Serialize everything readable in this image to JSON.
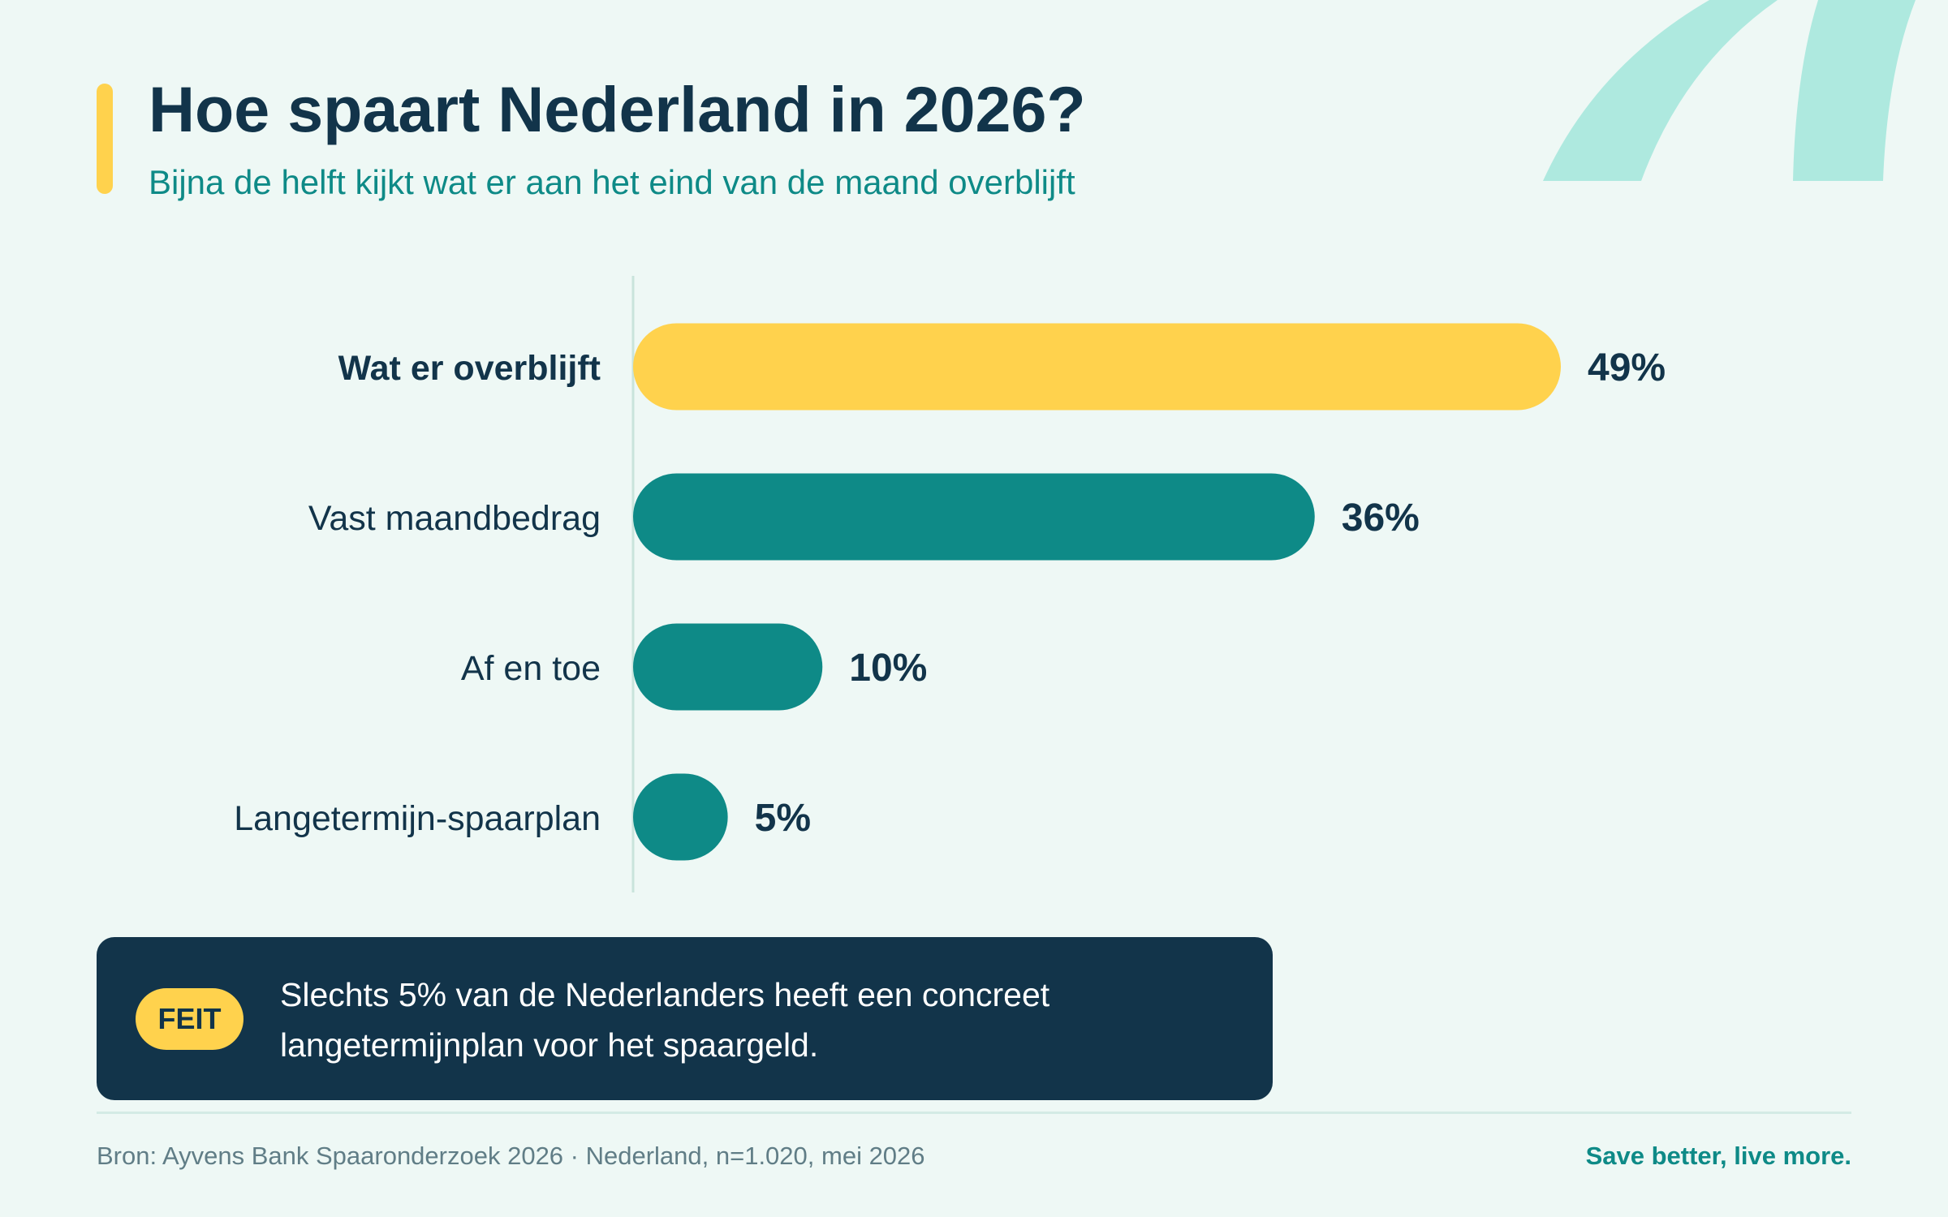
{
  "header": {
    "title": "Hoe spaart Nederland in 2026?",
    "subtitle": "Bijna de helft kijkt wat er aan het eind van de maand overblijft"
  },
  "colors": {
    "highlight": "#ffd24d",
    "primary": "#0e8a87",
    "navy": "#12344a",
    "background": "#eef8f5",
    "decoration": "#aee9df"
  },
  "chart_data": {
    "type": "bar",
    "orientation": "horizontal",
    "categories": [
      "Wat er overblijft",
      "Vast maandbedrag",
      "Af en toe",
      "Langetermijn-spaarplan"
    ],
    "values": [
      49,
      36,
      10,
      5
    ],
    "value_labels": [
      "49%",
      "36%",
      "10%",
      "5%"
    ],
    "unit": "%",
    "highlight_index": 0,
    "xlim": [
      0,
      49
    ],
    "grid": false,
    "title": "Hoe spaart Nederland in 2026?",
    "subtitle": "Bijna de helft kijkt wat er aan het eind van de maand overblijft"
  },
  "fact": {
    "badge": "FEIT",
    "line1": "Slechts 5% van de Nederlanders heeft een concreet",
    "line2": "langetermijnplan voor het spaargeld."
  },
  "footer": {
    "source": "Bron: Ayvens Bank Spaaronderzoek 2026 · Nederland, n=1.020, mei 2026",
    "tagline": "Save better, live more."
  }
}
